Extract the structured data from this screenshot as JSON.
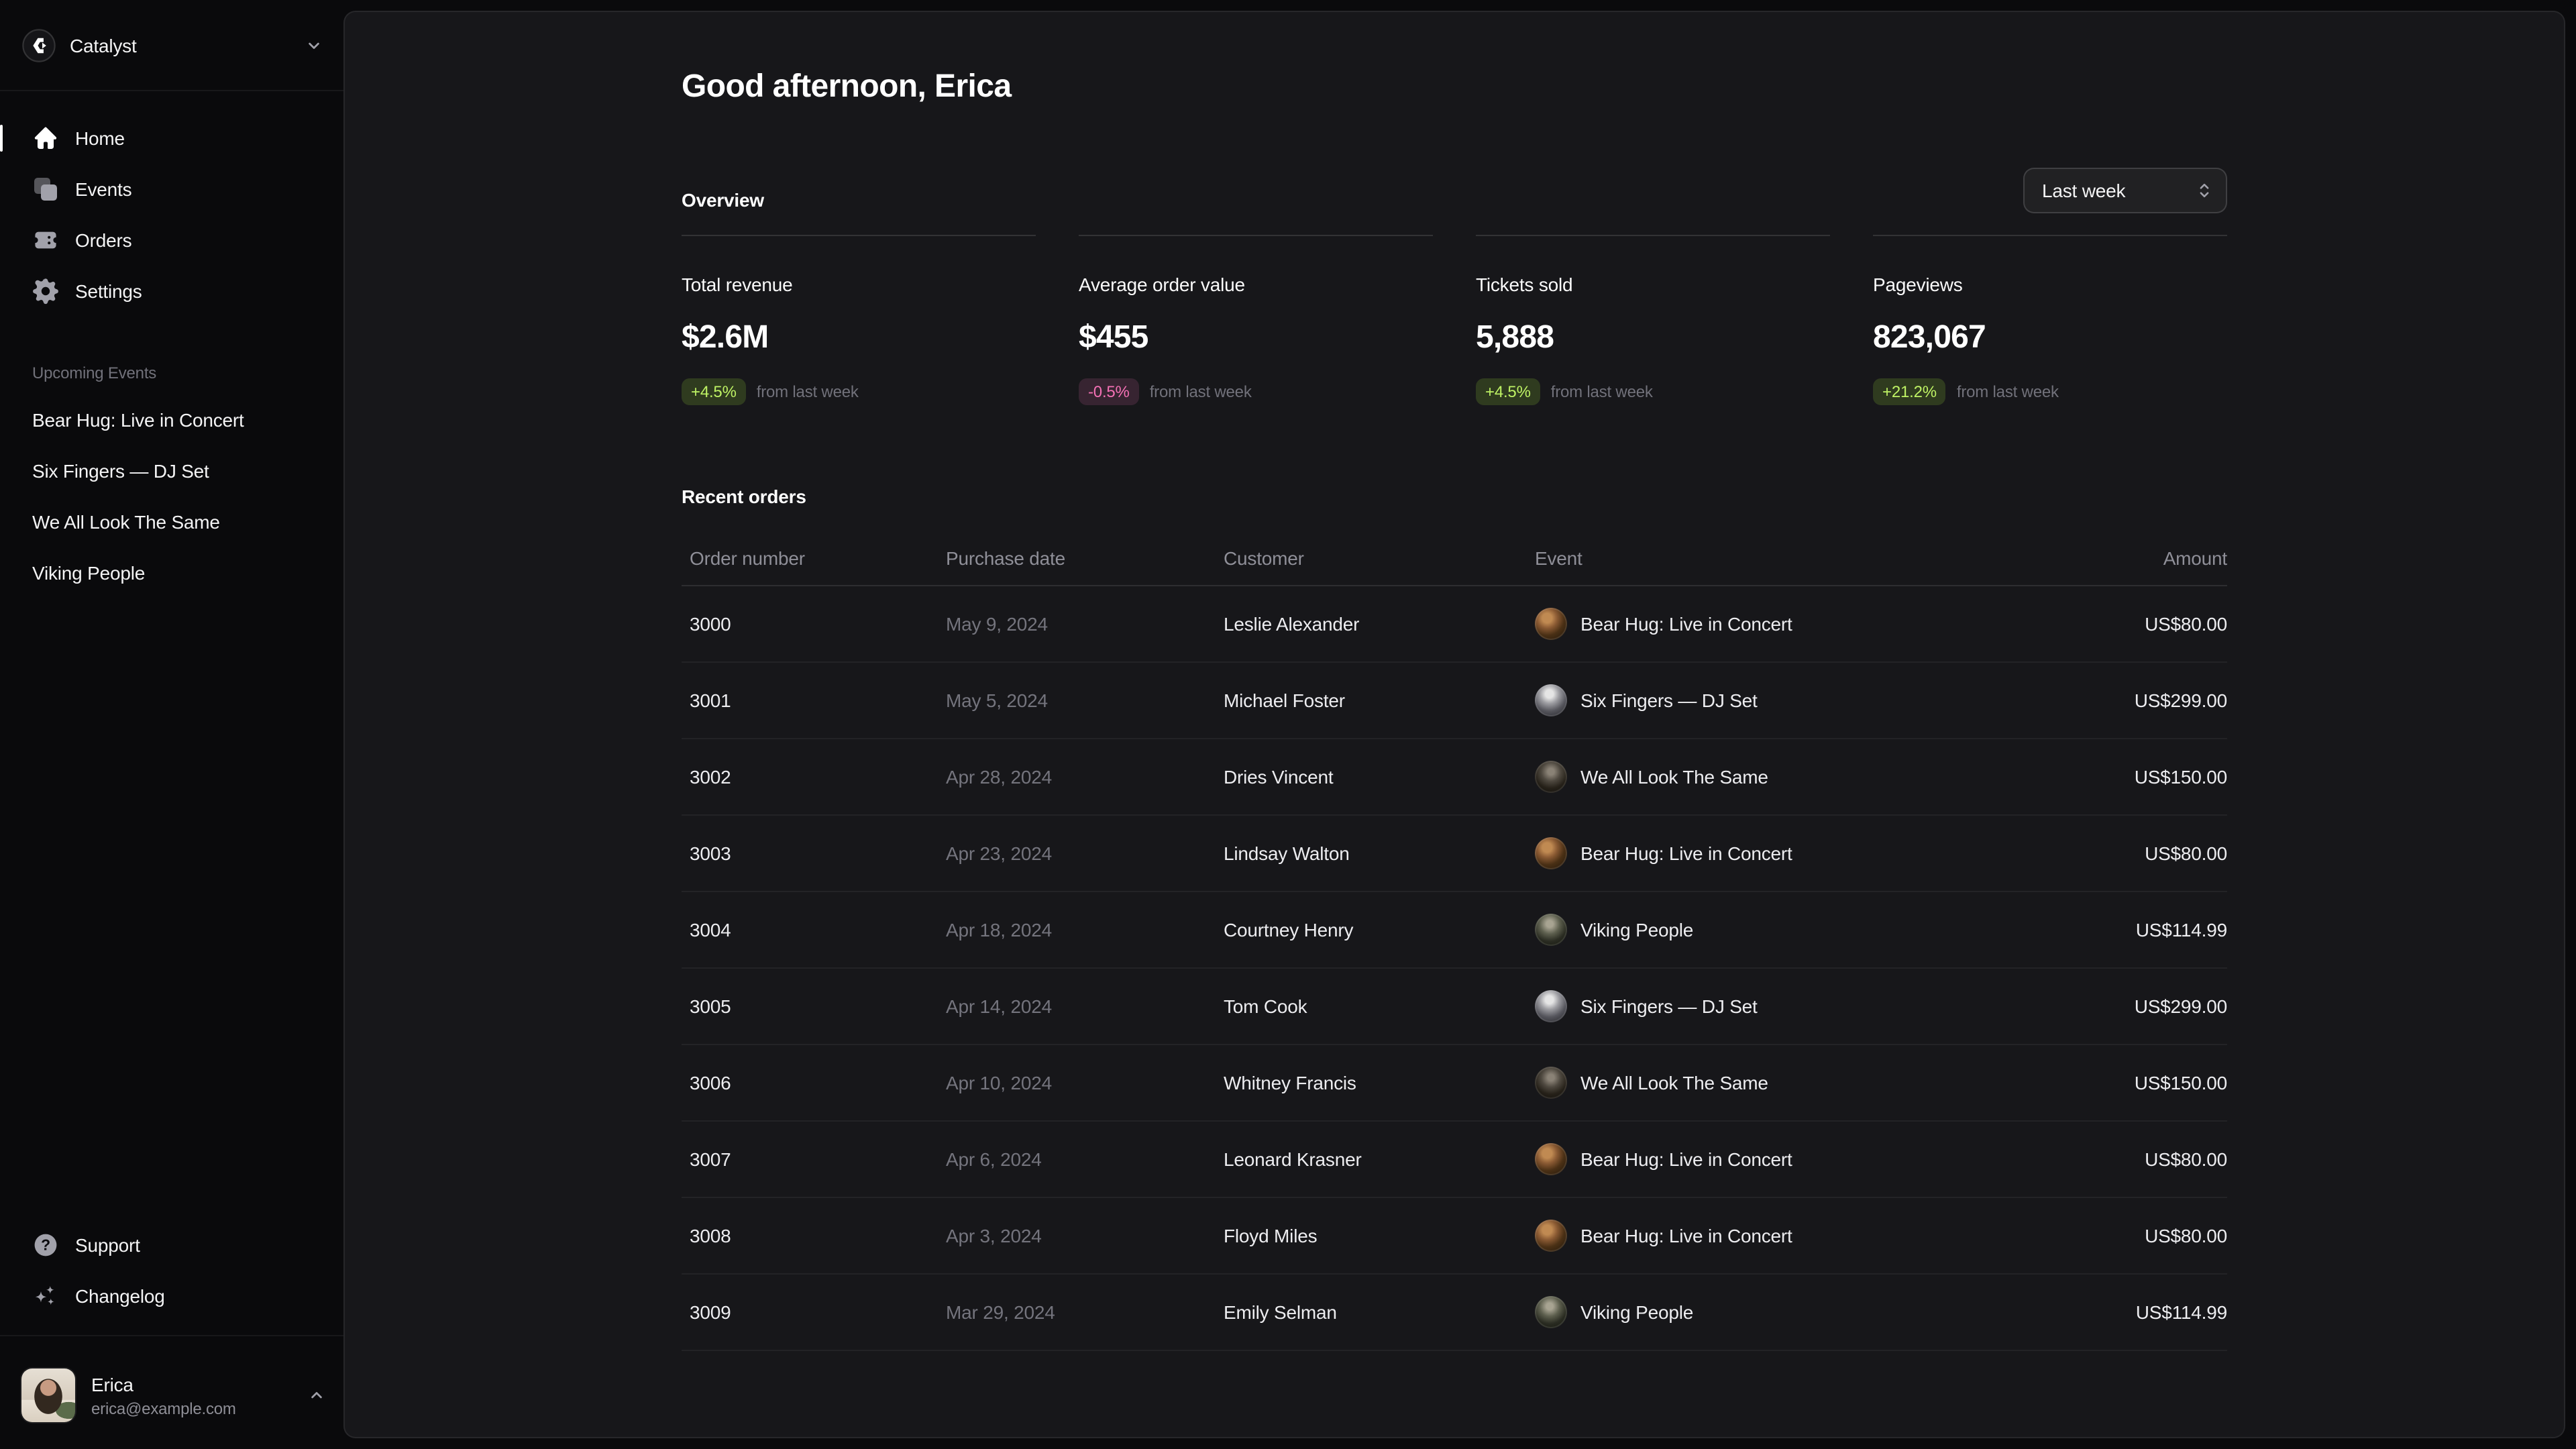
{
  "brand": {
    "name": "Catalyst",
    "logo_icon": "catalyst-logo-icon",
    "chevron_icon": "chevron-down-icon"
  },
  "sidebar": {
    "nav": [
      {
        "label": "Home",
        "icon": "home-icon",
        "active": true
      },
      {
        "label": "Events",
        "icon": "square-stack-icon",
        "active": false
      },
      {
        "label": "Orders",
        "icon": "ticket-icon",
        "active": false
      },
      {
        "label": "Settings",
        "icon": "gear-icon",
        "active": false
      }
    ],
    "upcoming_heading": "Upcoming Events",
    "upcoming": [
      "Bear Hug: Live in Concert",
      "Six Fingers — DJ Set",
      "We All Look The Same",
      "Viking People"
    ],
    "footer_nav": [
      {
        "label": "Support",
        "icon": "question-icon"
      },
      {
        "label": "Changelog",
        "icon": "sparkles-icon"
      }
    ],
    "user": {
      "name": "Erica",
      "email": "erica@example.com",
      "chevron_icon": "chevron-up-icon"
    }
  },
  "main": {
    "greeting": "Good afternoon, Erica",
    "overview_heading": "Overview",
    "period_select": {
      "value": "Last week",
      "icon": "chevron-up-down-icon"
    },
    "stats": [
      {
        "label": "Total revenue",
        "value": "$2.6M",
        "change": "+4.5%",
        "trend": "up",
        "note": "from last week"
      },
      {
        "label": "Average order value",
        "value": "$455",
        "change": "-0.5%",
        "trend": "down",
        "note": "from last week"
      },
      {
        "label": "Tickets sold",
        "value": "5,888",
        "change": "+4.5%",
        "trend": "up",
        "note": "from last week"
      },
      {
        "label": "Pageviews",
        "value": "823,067",
        "change": "+21.2%",
        "trend": "up",
        "note": "from last week"
      }
    ],
    "orders": {
      "heading": "Recent orders",
      "columns": [
        "Order number",
        "Purchase date",
        "Customer",
        "Event",
        "Amount"
      ],
      "rows": [
        {
          "order": "3000",
          "date": "May 9, 2024",
          "customer": "Leslie Alexander",
          "event": "Bear Hug: Live in Concert",
          "avatar": "bear-hug",
          "amount": "US$80.00"
        },
        {
          "order": "3001",
          "date": "May 5, 2024",
          "customer": "Michael Foster",
          "event": "Six Fingers — DJ Set",
          "avatar": "six-fingers",
          "amount": "US$299.00"
        },
        {
          "order": "3002",
          "date": "Apr 28, 2024",
          "customer": "Dries Vincent",
          "event": "We All Look The Same",
          "avatar": "we-all-look",
          "amount": "US$150.00"
        },
        {
          "order": "3003",
          "date": "Apr 23, 2024",
          "customer": "Lindsay Walton",
          "event": "Bear Hug: Live in Concert",
          "avatar": "bear-hug",
          "amount": "US$80.00"
        },
        {
          "order": "3004",
          "date": "Apr 18, 2024",
          "customer": "Courtney Henry",
          "event": "Viking People",
          "avatar": "viking",
          "amount": "US$114.99"
        },
        {
          "order": "3005",
          "date": "Apr 14, 2024",
          "customer": "Tom Cook",
          "event": "Six Fingers — DJ Set",
          "avatar": "six-fingers",
          "amount": "US$299.00"
        },
        {
          "order": "3006",
          "date": "Apr 10, 2024",
          "customer": "Whitney Francis",
          "event": "We All Look The Same",
          "avatar": "we-all-look",
          "amount": "US$150.00"
        },
        {
          "order": "3007",
          "date": "Apr 6, 2024",
          "customer": "Leonard Krasner",
          "event": "Bear Hug: Live in Concert",
          "avatar": "bear-hug",
          "amount": "US$80.00"
        },
        {
          "order": "3008",
          "date": "Apr 3, 2024",
          "customer": "Floyd Miles",
          "event": "Bear Hug: Live in Concert",
          "avatar": "bear-hug",
          "amount": "US$80.00"
        },
        {
          "order": "3009",
          "date": "Mar 29, 2024",
          "customer": "Emily Selman",
          "event": "Viking People",
          "avatar": "viking",
          "amount": "US$114.99"
        }
      ]
    }
  },
  "colors": {
    "page_bg": "#0a0a0c",
    "panel_bg": "#17171a",
    "badge_up_text": "#bef264",
    "badge_down_text": "#f472b6",
    "muted_text": "#71717a"
  }
}
